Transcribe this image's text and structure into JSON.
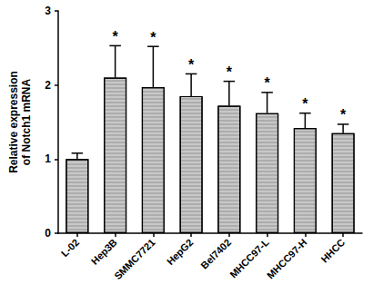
{
  "chart_data": {
    "type": "bar",
    "y_label": "Relative expression of Notch1 mRNA",
    "categories": [
      "L-02",
      "Hep3B",
      "SMMC7721",
      "HepG2",
      "Bel7402",
      "MHCC97-L",
      "MHCC97-H",
      "HHCC"
    ],
    "values": [
      1.0,
      2.1,
      1.97,
      1.85,
      1.72,
      1.62,
      1.42,
      1.35
    ],
    "errors": [
      0.08,
      0.43,
      0.55,
      0.3,
      0.33,
      0.28,
      0.2,
      0.12
    ],
    "annotations": [
      null,
      "*",
      "*",
      "*",
      "*",
      "*",
      "*",
      "*"
    ],
    "color": "#c8c8c8",
    "ylim": [
      0,
      3
    ],
    "yticks": [
      0,
      1,
      2,
      3
    ],
    "grid": false
  }
}
